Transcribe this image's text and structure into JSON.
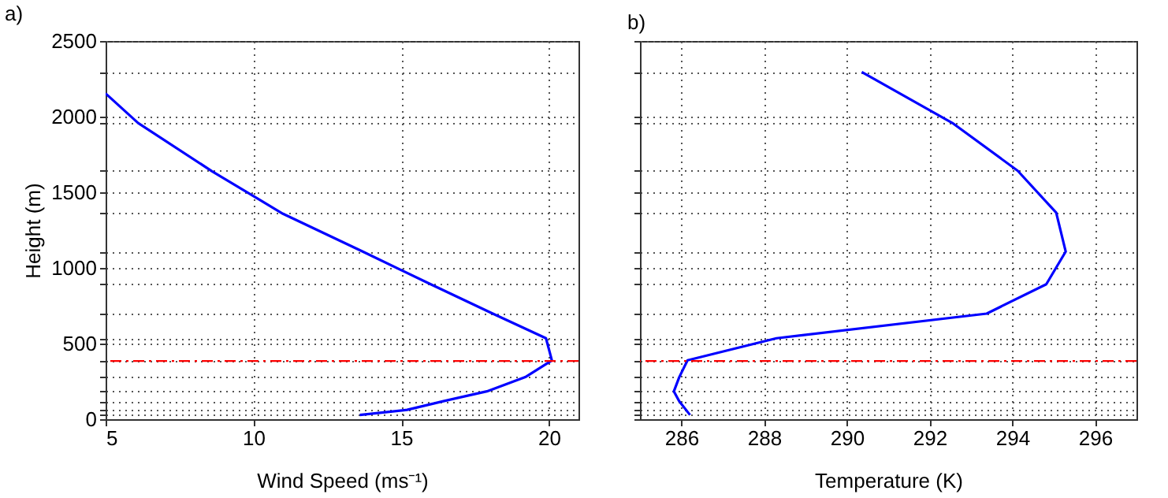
{
  "chart_data": [
    {
      "type": "line",
      "title": "a)",
      "xlabel": "Wind Speed (ms⁻¹)",
      "ylabel": "Height (m)",
      "series": [
        {
          "color": "#0000ff",
          "x": [
            5.0,
            6.1,
            8.6,
            11.0,
            13.7,
            16.0,
            18.1,
            19.9,
            20.1,
            19.2,
            17.9,
            16.4,
            15.2,
            13.6
          ],
          "values": [
            2153,
            1958,
            1639,
            1358,
            1108,
            892,
            698,
            535,
            389,
            278,
            184,
            118,
            62,
            28
          ]
        }
      ],
      "xlim": [
        5,
        21
      ],
      "xticks": [
        5,
        10,
        15,
        20
      ],
      "ylim": [
        0,
        2500
      ],
      "yticks": [
        0,
        500,
        1000,
        1500,
        2000,
        2500,
        {
          "value": 28,
          "label": null
        },
        {
          "value": 62,
          "label": null
        },
        {
          "value": 118,
          "label": null
        },
        {
          "value": 184,
          "label": null
        },
        {
          "value": 278,
          "label": null
        },
        {
          "value": 389,
          "label": null
        },
        {
          "value": 535,
          "label": null
        },
        {
          "value": 698,
          "label": null
        },
        {
          "value": 892,
          "label": null
        },
        {
          "value": 1108,
          "label": null
        },
        {
          "value": 1365,
          "label": null
        },
        {
          "value": 1642,
          "label": null
        },
        {
          "value": 1958,
          "label": null
        },
        {
          "value": 2295,
          "label": null
        }
      ],
      "grid": true,
      "line_style": "solid",
      "ref_lines": [
        {
          "axis": "y",
          "value": 385,
          "color": "#ff0000",
          "line_style": "dashed"
        }
      ]
    },
    {
      "type": "line",
      "title": "b)",
      "xlabel": "Temperature (K)",
      "series": [
        {
          "color": "#0000ff",
          "x": [
            290.36,
            292.55,
            294.13,
            295.06,
            295.29,
            294.82,
            293.38,
            288.3,
            286.15,
            285.95,
            285.82,
            285.95,
            286.21
          ],
          "values": [
            2295,
            1958,
            1642,
            1365,
            1108,
            892,
            698,
            535,
            389,
            278,
            184,
            118,
            28
          ]
        }
      ],
      "xlim": [
        285,
        297
      ],
      "xticks": [
        286,
        288,
        290,
        292,
        294,
        296
      ],
      "ylim": [
        0,
        2500
      ],
      "yticks": [
        0,
        500,
        1000,
        1500,
        2000,
        2500,
        {
          "value": 28,
          "label": null
        },
        {
          "value": 62,
          "label": null
        },
        {
          "value": 118,
          "label": null
        },
        {
          "value": 184,
          "label": null
        },
        {
          "value": 278,
          "label": null
        },
        {
          "value": 389,
          "label": null
        },
        {
          "value": 535,
          "label": null
        },
        {
          "value": 698,
          "label": null
        },
        {
          "value": 892,
          "label": null
        },
        {
          "value": 1108,
          "label": null
        },
        {
          "value": 1365,
          "label": null
        },
        {
          "value": 1642,
          "label": null
        },
        {
          "value": 1958,
          "label": null
        },
        {
          "value": 2295,
          "label": null
        }
      ],
      "grid": true,
      "line_style": "solid",
      "tick_labels": "x",
      "ref_lines": [
        {
          "axis": "y",
          "value": 385,
          "color": "#ff0000",
          "line_style": "dashed"
        }
      ]
    }
  ]
}
